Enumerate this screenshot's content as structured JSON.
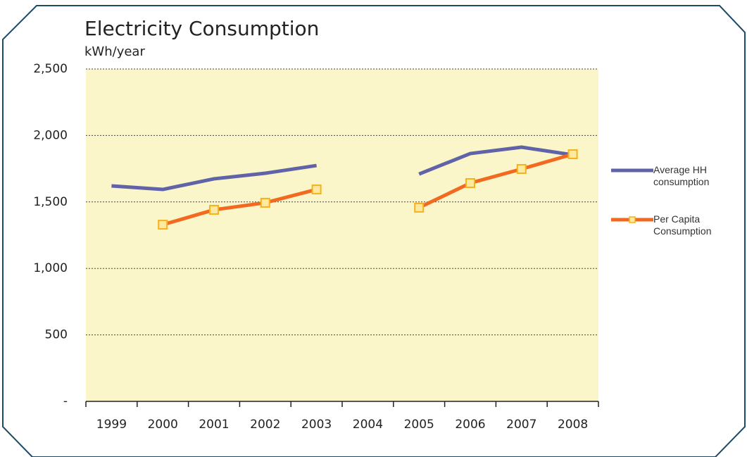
{
  "chart_data": {
    "type": "line",
    "title": "Electricity Consumption",
    "subtitle": "kWh/year",
    "categories": [
      "1999",
      "2000",
      "2001",
      "2002",
      "2003",
      "2004",
      "2005",
      "2006",
      "2007",
      "2008"
    ],
    "series": [
      {
        "name": "Average HH consumption",
        "color": "#6163a8",
        "values": [
          1621,
          1594,
          1674,
          1716,
          1774,
          null,
          1710,
          1864,
          1912,
          1854
        ]
      },
      {
        "name": "Per Capita Consumption",
        "color": "#f26a21",
        "marker_fill": "#fde9a0",
        "marker_stroke": "#f5b21a",
        "values": [
          null,
          1329,
          1441,
          1494,
          1594,
          null,
          1457,
          1642,
          1748,
          1859
        ]
      }
    ],
    "ylim": [
      0,
      2500
    ],
    "yticks": [
      {
        "value": 0,
        "label": "-"
      },
      500,
      {
        "value": 1000,
        "label": "1,000"
      },
      {
        "value": 1500,
        "label": "1,500"
      },
      {
        "value": 2000,
        "label": "2,000"
      },
      {
        "value": 2500,
        "label": "2,500"
      }
    ],
    "grid": true,
    "legend": "right",
    "plot_background": "#faf6c9"
  }
}
